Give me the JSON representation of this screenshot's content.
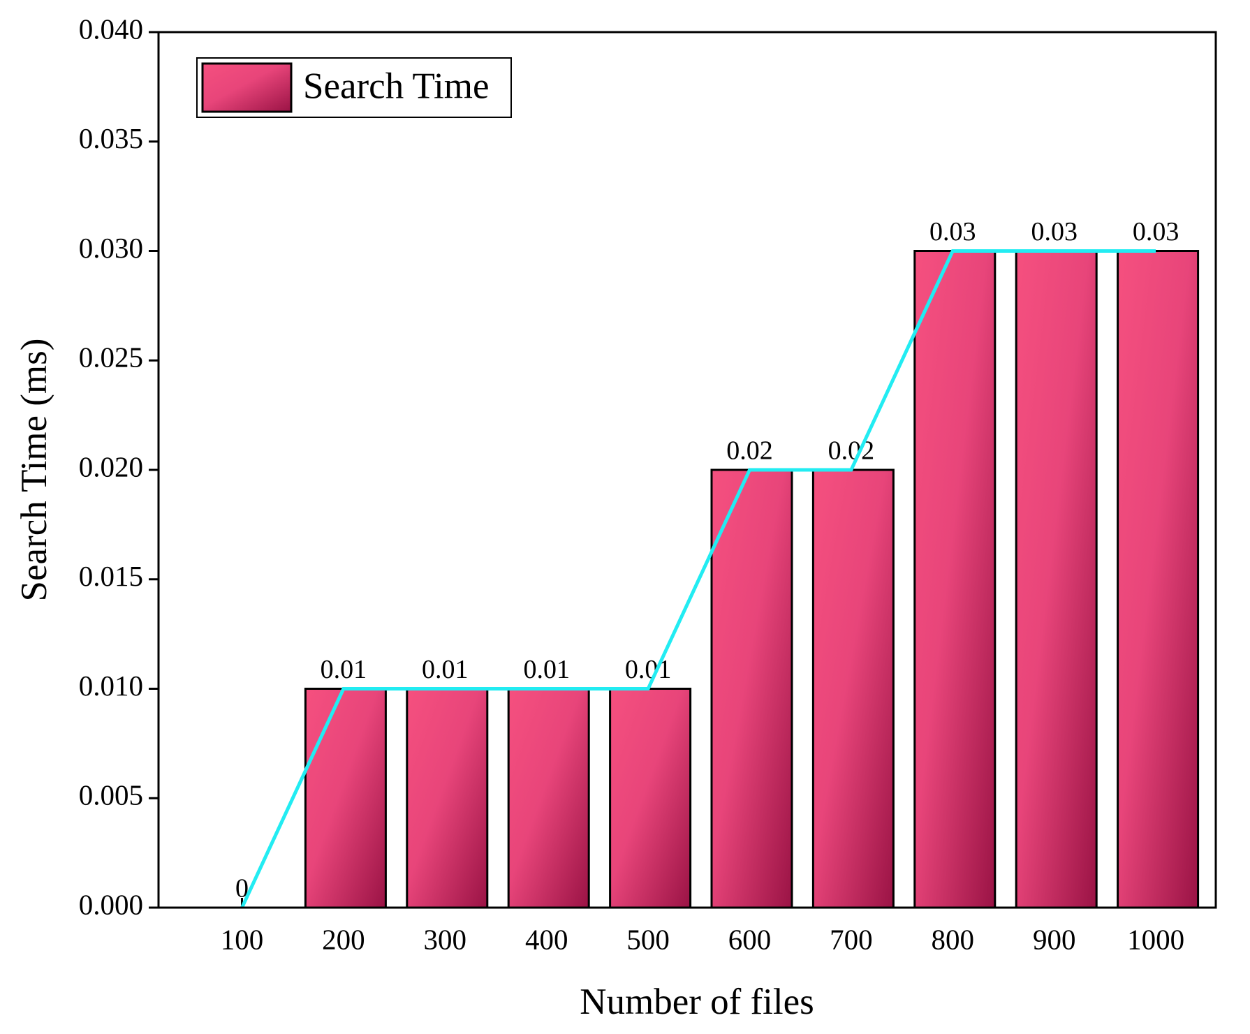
{
  "chart_data": {
    "type": "bar",
    "x_label": "Number of files",
    "y_label": "Search Time (ms)",
    "categories": [
      "100",
      "200",
      "300",
      "400",
      "500",
      "600",
      "700",
      "800",
      "900",
      "1000"
    ],
    "series": [
      {
        "name": "Search Time",
        "color": "#f5507f",
        "values": [
          0,
          0.01,
          0.01,
          0.01,
          0.01,
          0.02,
          0.02,
          0.03,
          0.03,
          0.03
        ]
      }
    ],
    "line_overlay_color": "#22ecf2",
    "ylim": [
      0,
      0.04
    ],
    "yticks": [
      {
        "value": 0,
        "label": "0.000"
      },
      {
        "value": 0.005,
        "label": "0.005"
      },
      {
        "value": 0.01,
        "label": "0.010"
      },
      {
        "value": 0.015,
        "label": "0.015"
      },
      {
        "value": 0.02,
        "label": "0.020"
      },
      {
        "value": 0.025,
        "label": "0.025"
      },
      {
        "value": 0.03,
        "label": "0.030"
      },
      {
        "value": 0.035,
        "label": "0.035"
      },
      {
        "value": 0.04,
        "label": "0.040"
      }
    ],
    "legend": "upper left"
  }
}
